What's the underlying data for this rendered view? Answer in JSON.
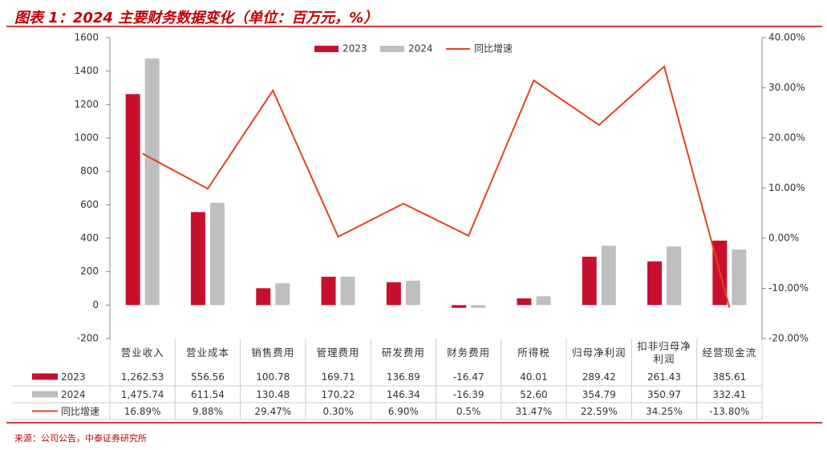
{
  "chart_data": {
    "type": "bar",
    "title": "图表 1：2024 主要财务数据变化（单位：百万元，%）",
    "source": "来源：公司公告，中泰证券研究所",
    "categories": [
      "营业收入",
      "营业成本",
      "销售费用",
      "管理费用",
      "研发费用",
      "财务费用",
      "所得税",
      "归母净利润",
      "扣非归母净利润",
      "经营现金流"
    ],
    "series": [
      {
        "name": "2023",
        "color": "#c8102e",
        "type": "bar",
        "values": [
          1262.53,
          556.56,
          100.78,
          169.71,
          136.89,
          -16.47,
          40.01,
          289.42,
          261.43,
          385.61
        ],
        "value_labels": [
          "1,262.53",
          "556.56",
          "100.78",
          "169.71",
          "136.89",
          "-16.47",
          "40.01",
          "289.42",
          "261.43",
          "385.61"
        ]
      },
      {
        "name": "2024",
        "color": "#bfbfbf",
        "type": "bar",
        "values": [
          1475.74,
          611.54,
          130.48,
          170.22,
          146.34,
          -16.39,
          52.6,
          354.79,
          350.97,
          332.41
        ],
        "value_labels": [
          "1,475.74",
          "611.54",
          "130.48",
          "170.22",
          "146.34",
          "-16.39",
          "52.60",
          "354.79",
          "350.97",
          "332.41"
        ]
      },
      {
        "name": "同比增速",
        "color": "#e2431e",
        "type": "line",
        "axis": "y2",
        "values": [
          16.89,
          9.88,
          29.47,
          0.3,
          6.9,
          0.5,
          31.47,
          22.59,
          34.25,
          -13.8
        ],
        "value_labels": [
          "16.89%",
          "9.88%",
          "29.47%",
          "0.30%",
          "6.90%",
          "0.5%",
          "31.47%",
          "22.59%",
          "34.25%",
          "-13.80%"
        ]
      }
    ],
    "ylim": [
      -200,
      1600
    ],
    "yticks": [
      -200,
      0,
      200,
      400,
      600,
      800,
      1000,
      1200,
      1400,
      1600
    ],
    "y2lim": [
      -20,
      40
    ],
    "y2ticks": [
      {
        "value": -20,
        "label": "-20.00%"
      },
      {
        "value": -10,
        "label": "-10.00%"
      },
      {
        "value": 0,
        "label": "0.00%"
      },
      {
        "value": 10,
        "label": "10.00%"
      },
      {
        "value": 20,
        "label": "20.00%"
      },
      {
        "value": 30,
        "label": "30.00%"
      },
      {
        "value": 40,
        "label": "40.00%"
      }
    ],
    "legend": "top"
  }
}
